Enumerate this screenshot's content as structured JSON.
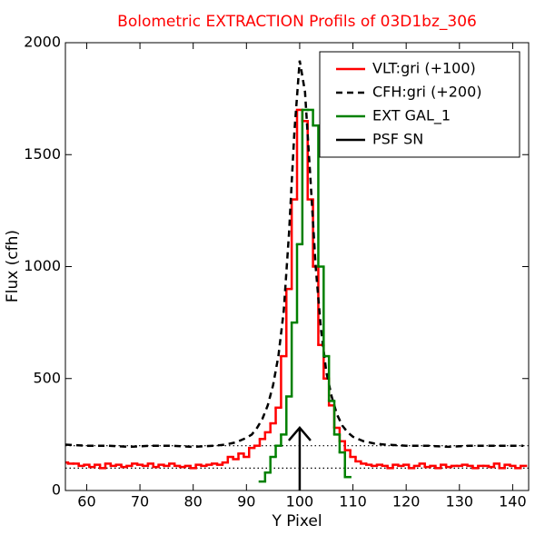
{
  "chart_data": {
    "type": "line",
    "title": "Bolometric EXTRACTION Profils of 03D1bz_306",
    "xlabel": "Y Pixel",
    "ylabel": "Flux (cfh)",
    "xlim": [
      56,
      143
    ],
    "ylim": [
      0,
      2000
    ],
    "xticks": [
      60,
      70,
      80,
      90,
      100,
      110,
      120,
      130,
      140
    ],
    "yticks": [
      0,
      500,
      1000,
      1500,
      2000
    ],
    "legend": "upper right",
    "reference_lines": [
      100,
      200
    ],
    "series": [
      {
        "name": "VLT:gri (+100)",
        "color": "#ff0000",
        "style": "step",
        "x": [
          56,
          57,
          58,
          59,
          60,
          61,
          62,
          63,
          64,
          65,
          66,
          67,
          68,
          69,
          70,
          71,
          72,
          73,
          74,
          75,
          76,
          77,
          78,
          79,
          80,
          81,
          82,
          83,
          84,
          85,
          86,
          87,
          88,
          89,
          90,
          91,
          92,
          93,
          94,
          95,
          96,
          97,
          98,
          99,
          100,
          101,
          102,
          103,
          104,
          105,
          106,
          107,
          108,
          109,
          110,
          111,
          112,
          113,
          114,
          115,
          116,
          117,
          118,
          119,
          120,
          121,
          122,
          123,
          124,
          125,
          126,
          127,
          128,
          129,
          130,
          131,
          132,
          133,
          134,
          135,
          136,
          137,
          138,
          139,
          140,
          141,
          142
        ],
        "values": [
          125,
          120,
          120,
          110,
          115,
          105,
          115,
          100,
          120,
          110,
          115,
          105,
          110,
          120,
          115,
          110,
          120,
          105,
          115,
          110,
          120,
          110,
          105,
          110,
          100,
          115,
          110,
          115,
          120,
          115,
          125,
          150,
          140,
          165,
          150,
          190,
          200,
          230,
          260,
          300,
          370,
          600,
          900,
          1300,
          1700,
          1650,
          1300,
          1000,
          650,
          500,
          380,
          280,
          220,
          180,
          150,
          130,
          120,
          115,
          110,
          115,
          110,
          100,
          115,
          110,
          115,
          100,
          110,
          120,
          105,
          110,
          100,
          115,
          105,
          110,
          110,
          115,
          110,
          100,
          110,
          110,
          105,
          120,
          100,
          115,
          110,
          100,
          110
        ]
      },
      {
        "name": "CFH:gri (+200)",
        "color": "#000000",
        "style": "dashed",
        "x": [
          56,
          60,
          64,
          68,
          72,
          76,
          80,
          84,
          86,
          88,
          90,
          91,
          92,
          93,
          94,
          95,
          96,
          97,
          98,
          99,
          100,
          101,
          102,
          103,
          104,
          105,
          106,
          107,
          108,
          109,
          110,
          112,
          114,
          116,
          120,
          124,
          128,
          132,
          136,
          140,
          142
        ],
        "values": [
          205,
          200,
          200,
          195,
          200,
          200,
          195,
          200,
          205,
          215,
          235,
          250,
          280,
          320,
          380,
          470,
          600,
          800,
          1150,
          1600,
          1920,
          1780,
          1400,
          1000,
          720,
          530,
          420,
          340,
          290,
          260,
          240,
          220,
          210,
          205,
          200,
          200,
          195,
          200,
          200,
          200,
          200
        ]
      },
      {
        "name": "EXT GAL_1",
        "color": "#008000",
        "style": "step",
        "x": [
          93,
          94,
          95,
          96,
          97,
          98,
          99,
          100,
          101,
          102,
          103,
          104,
          105,
          106,
          107,
          108,
          109
        ],
        "values": [
          40,
          80,
          150,
          200,
          250,
          420,
          750,
          1100,
          1700,
          1700,
          1630,
          1000,
          600,
          400,
          250,
          170,
          60
        ]
      },
      {
        "name": "PSF SN",
        "color": "#000000",
        "style": "arrow",
        "x": [
          100
        ],
        "values": [
          280
        ]
      }
    ]
  }
}
